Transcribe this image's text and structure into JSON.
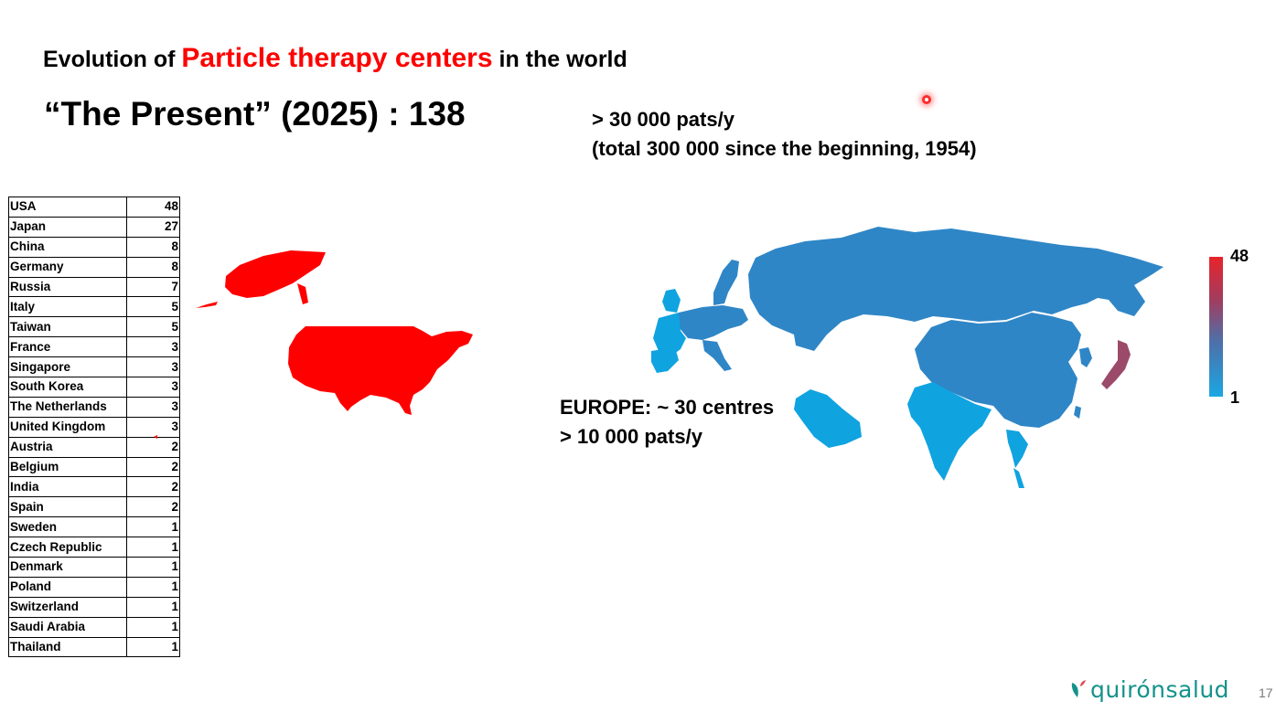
{
  "title": {
    "prefix": "Evolution of",
    "highlight": "Particle therapy centers",
    "suffix": "in the world",
    "highlight_color": "#ff0000"
  },
  "subtitle": "“The Present” (2025) :  138",
  "stats": {
    "line1": "> 30 000 pats/y",
    "line2": "(total 300 000 since the beginning, 1954)"
  },
  "europe_note": {
    "line1": "EUROPE: ~ 30 centres",
    "line2": "> 10 000 pats/y"
  },
  "countries": [
    {
      "name": "USA",
      "count": "48"
    },
    {
      "name": "Japan",
      "count": "27"
    },
    {
      "name": "China",
      "count": "8"
    },
    {
      "name": "Germany",
      "count": "8"
    },
    {
      "name": "Russia",
      "count": "7"
    },
    {
      "name": "Italy",
      "count": "5"
    },
    {
      "name": "Taiwan",
      "count": "5"
    },
    {
      "name": "France",
      "count": "3"
    },
    {
      "name": "Singapore",
      "count": "3"
    },
    {
      "name": "South Korea",
      "count": "3"
    },
    {
      "name": "The Netherlands",
      "count": "3"
    },
    {
      "name": "United Kingdom",
      "count": "3"
    },
    {
      "name": "Austria",
      "count": "2"
    },
    {
      "name": "Belgium",
      "count": "2"
    },
    {
      "name": "India",
      "count": "2"
    },
    {
      "name": "Spain",
      "count": "2"
    },
    {
      "name": "Sweden",
      "count": "1"
    },
    {
      "name": "Czech  Republic",
      "count": "1"
    },
    {
      "name": "Denmark",
      "count": "1"
    },
    {
      "name": "Poland",
      "count": "1"
    },
    {
      "name": "Switzerland",
      "count": "1"
    },
    {
      "name": "Saudi Arabia",
      "count": "1"
    },
    {
      "name": "Thailand",
      "count": "1"
    }
  ],
  "legend": {
    "max": "48",
    "min": "1",
    "color_high": "#e8242c",
    "color_low": "#1aa7e3"
  },
  "map_colors": {
    "usa": "#ff0000",
    "japan": "#9b4a6a",
    "mid": "#2f86c6",
    "low": "#0fa3e0"
  },
  "logo": {
    "text": "quirónsalud",
    "color": "#14928a"
  },
  "page_number": "17"
}
